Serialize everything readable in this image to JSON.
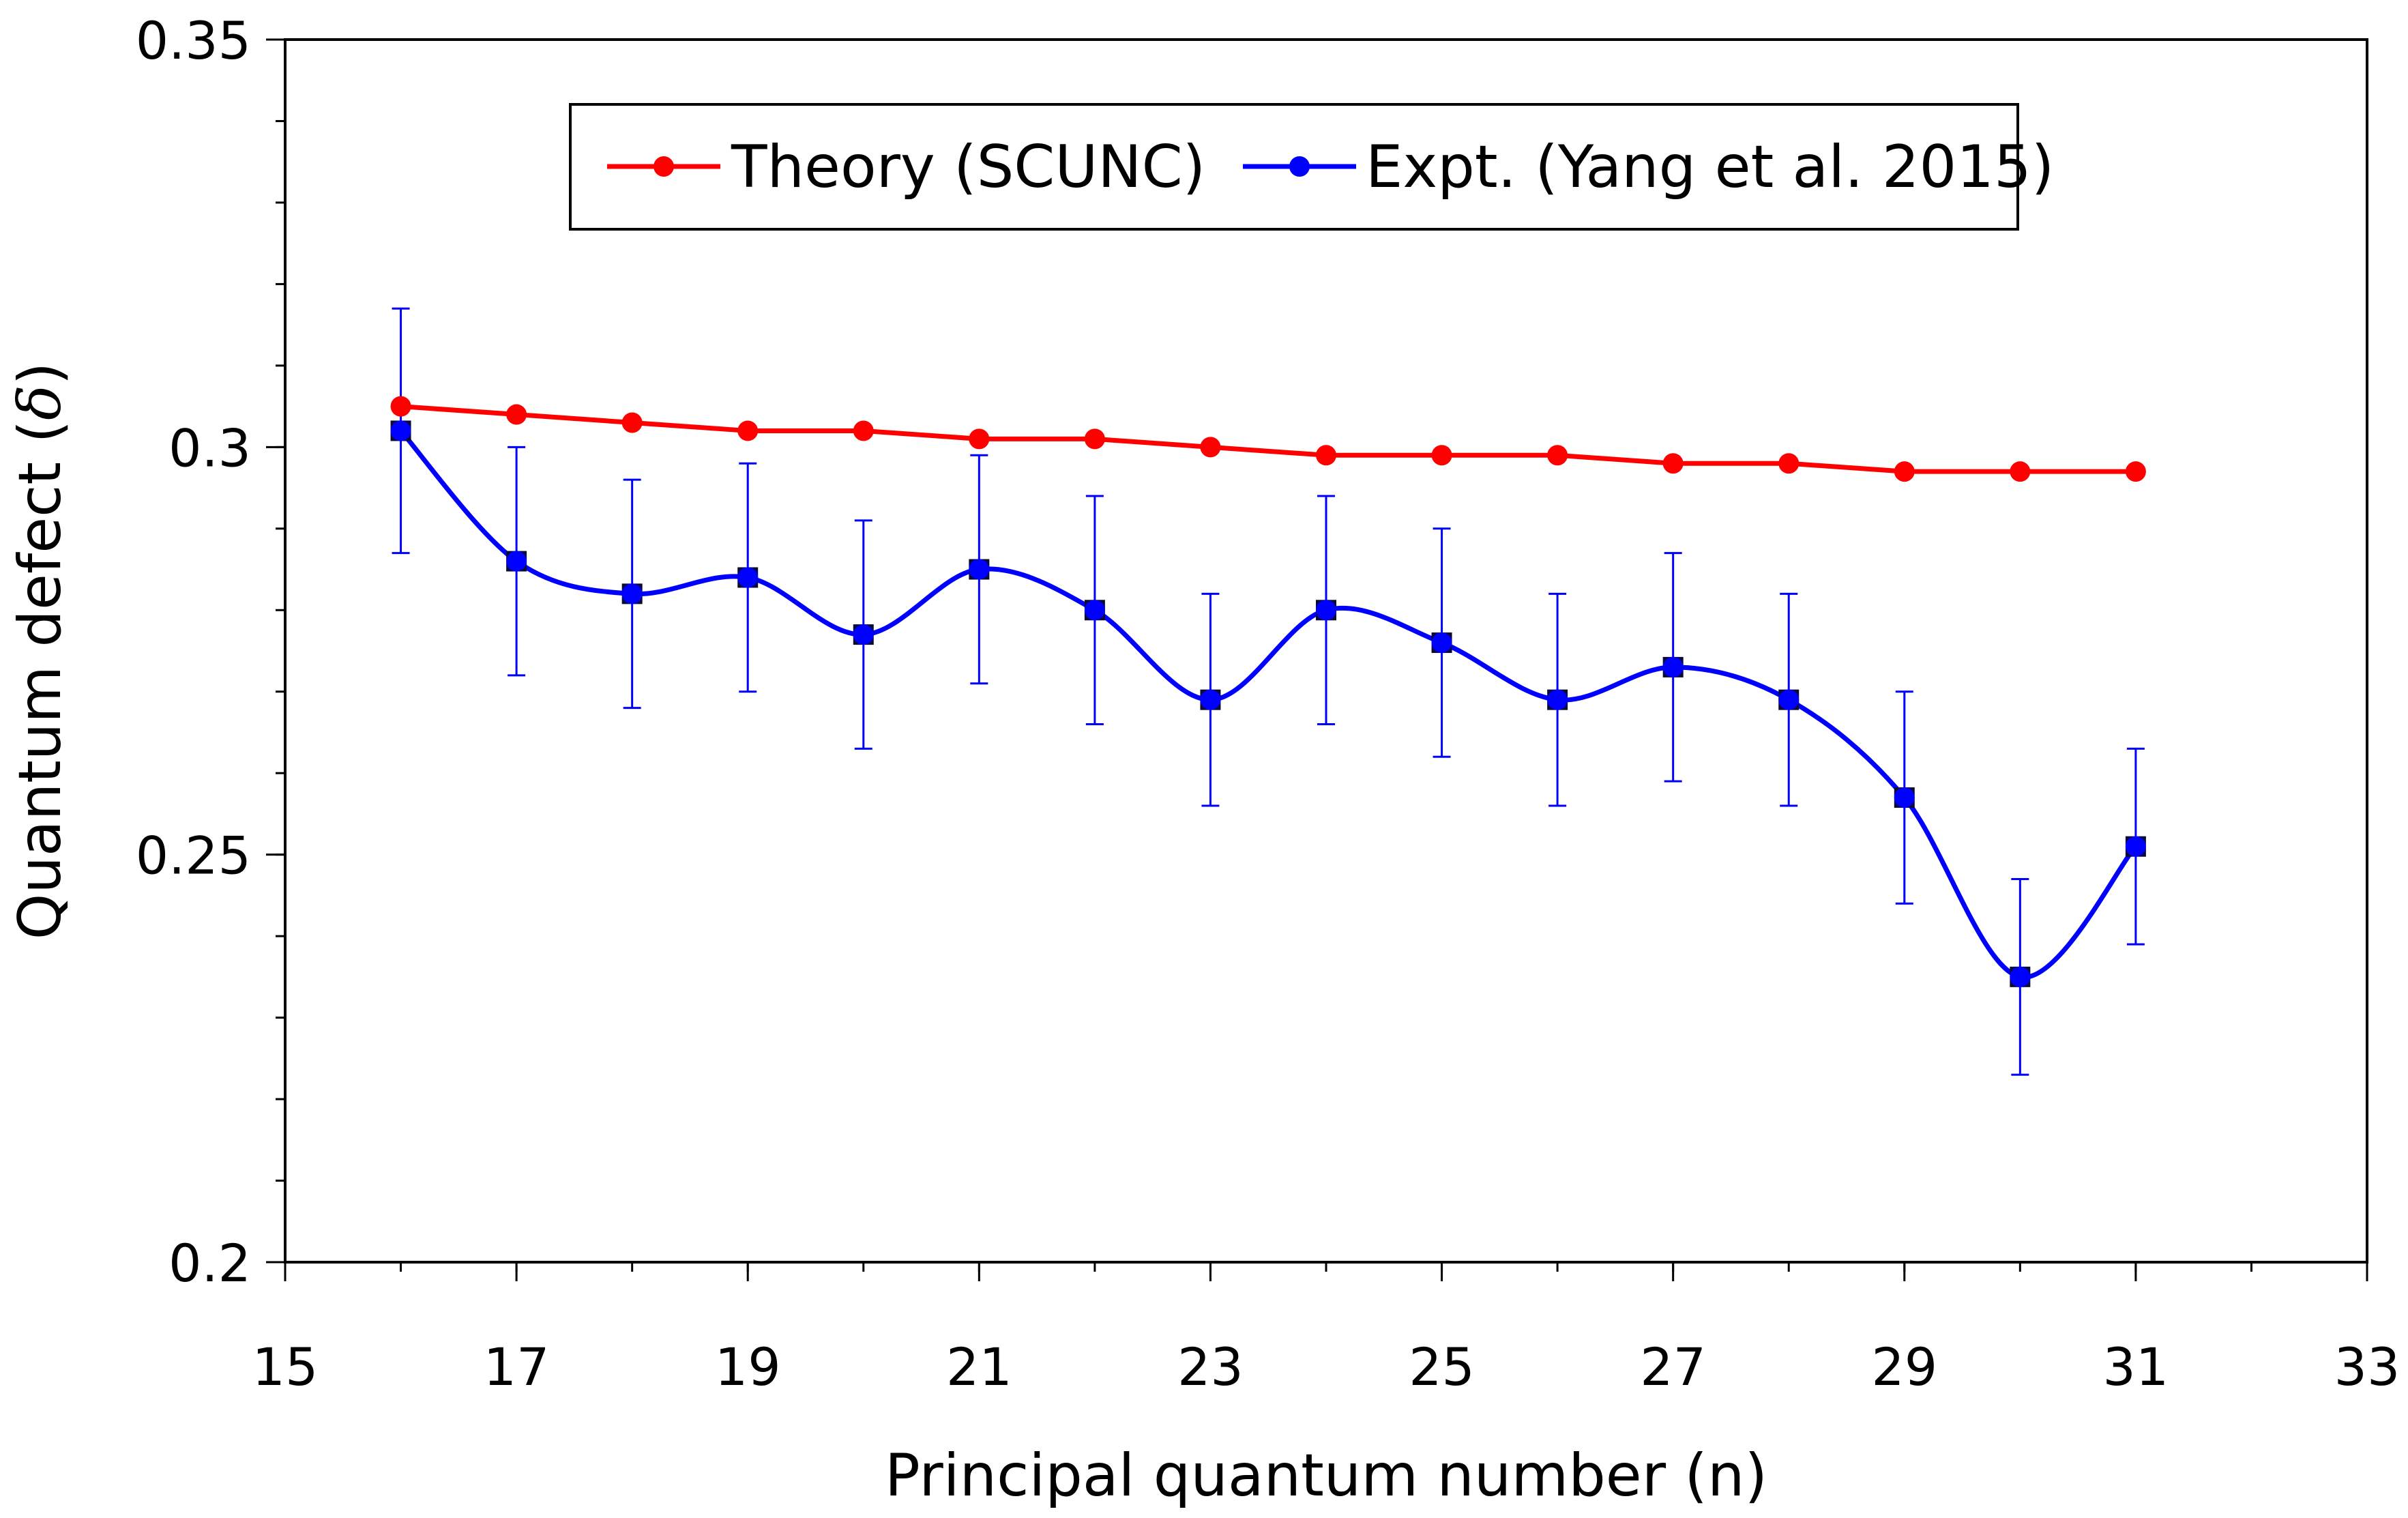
{
  "chart_data": {
    "type": "line",
    "title": "",
    "xlabel": "Principal quantum number (n)",
    "ylabel": "Quantum defect (",
    "ylabel_symbol": "δ",
    "ylabel_close": ")",
    "xlim": [
      15,
      33
    ],
    "ylim": [
      0.2,
      0.35
    ],
    "x_major_ticks": [
      "15",
      "17",
      "19",
      "21",
      "23",
      "25",
      "27",
      "29",
      "31",
      "33"
    ],
    "y_major_ticks": [
      "0.2",
      "0.25",
      "0.3",
      "0.35"
    ],
    "x_minor_step": 1,
    "y_minor_step": 0.01,
    "grid": false,
    "legend_position": "top-center",
    "series": [
      {
        "name": "Theory (SCUNC)",
        "color": "#ff0000",
        "marker": "circle",
        "x": [
          16,
          17,
          18,
          19,
          20,
          21,
          22,
          23,
          24,
          25,
          26,
          27,
          28,
          29,
          30,
          31
        ],
        "values": [
          0.305,
          0.304,
          0.303,
          0.302,
          0.302,
          0.301,
          0.301,
          0.3,
          0.299,
          0.299,
          0.299,
          0.298,
          0.298,
          0.297,
          0.297,
          0.297
        ]
      },
      {
        "name": "Expt. (Yang et al. 2015)",
        "color": "#0000ff",
        "marker": "circle",
        "smooth": true,
        "x": [
          16,
          17,
          18,
          19,
          20,
          21,
          22,
          23,
          24,
          25,
          26,
          27,
          28,
          29,
          30,
          31
        ],
        "values": [
          0.302,
          0.286,
          0.282,
          0.284,
          0.277,
          0.285,
          0.28,
          0.269,
          0.28,
          0.276,
          0.269,
          0.273,
          0.269,
          0.257,
          0.235,
          0.251
        ],
        "error": [
          0.015,
          0.014,
          0.014,
          0.014,
          0.014,
          0.014,
          0.014,
          0.013,
          0.014,
          0.014,
          0.013,
          0.014,
          0.013,
          0.013,
          0.012,
          0.012
        ]
      }
    ]
  }
}
